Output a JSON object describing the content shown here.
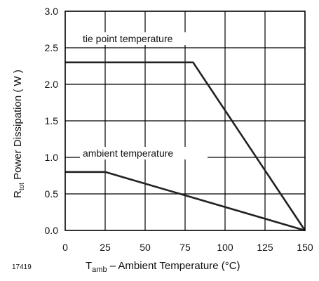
{
  "figure_id": "17419",
  "chart_data": {
    "type": "line",
    "title": "",
    "xlabel": {
      "main": "T",
      "sub": "amb",
      "rest": " – Ambient Temperature (°C)"
    },
    "ylabel": {
      "main": "R",
      "sub": "tot",
      "rest": " Power Dissipation ( W )"
    },
    "xlim": [
      0,
      150
    ],
    "ylim": [
      0,
      3.0
    ],
    "xticks": [
      "0",
      "25",
      "50",
      "75",
      "100",
      "125",
      "150"
    ],
    "yticks": [
      "0.0",
      "0.5",
      "1.0",
      "1.5",
      "2.0",
      "2.5",
      "3.0"
    ],
    "grid": true,
    "series": [
      {
        "name": "tie point temperature",
        "x": [
          0,
          80,
          150
        ],
        "y": [
          2.3,
          2.3,
          0
        ]
      },
      {
        "name": "ambient temperature",
        "x": [
          0,
          25,
          150
        ],
        "y": [
          0.8,
          0.8,
          0
        ]
      }
    ]
  }
}
